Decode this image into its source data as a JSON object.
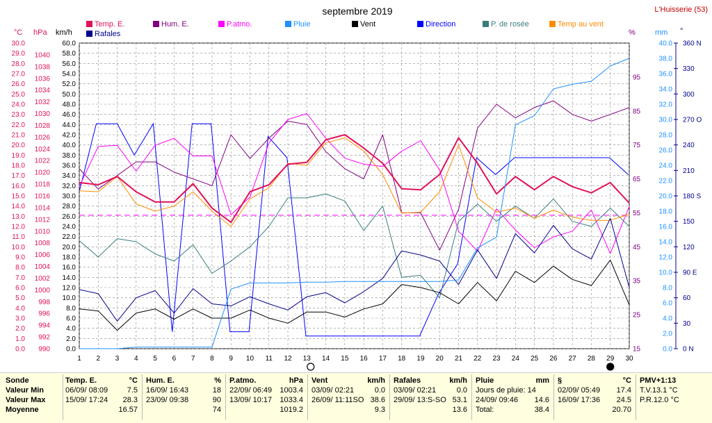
{
  "header": {
    "title": "septembre 2019",
    "station": "L'Huisserie (53)"
  },
  "legend": [
    {
      "name": "Temp. E.",
      "color": "#e0105a"
    },
    {
      "name": "Hum. E.",
      "color": "#800080"
    },
    {
      "name": "P.atmo.",
      "color": "#ff00ff"
    },
    {
      "name": "Pluie",
      "color": "#1e90ff"
    },
    {
      "name": "Vent",
      "color": "#000000"
    },
    {
      "name": "Direction",
      "color": "#0000ff"
    },
    {
      "name": "P. de rosée",
      "color": "#3a7c7c"
    },
    {
      "name": "Temp au vent",
      "color": "#ff8c00"
    },
    {
      "name": "Rafales",
      "color": "#00008b"
    }
  ],
  "axis_units": {
    "celsius": "°C",
    "hpa": "hPa",
    "kmh": "km/h",
    "percent": "%",
    "mm": "mm",
    "degree": "°"
  },
  "moon_symbols": [
    {
      "day": 13.2,
      "type": "full"
    },
    {
      "day": 29,
      "type": "new"
    }
  ],
  "chart_data": {
    "type": "line",
    "title": "septembre 2019",
    "x": [
      1,
      2,
      3,
      4,
      5,
      6,
      7,
      8,
      9,
      10,
      11,
      12,
      13,
      14,
      15,
      16,
      17,
      18,
      19,
      20,
      21,
      22,
      23,
      24,
      25,
      26,
      27,
      28,
      29,
      30
    ],
    "xlim": [
      1,
      30
    ],
    "grid": true,
    "axes": {
      "temp": {
        "label": "°C",
        "min": 0,
        "max": 30,
        "ticks": [
          0.0,
          1.0,
          2.0,
          3.0,
          4.0,
          5.0,
          6.0,
          7.0,
          8.0,
          9.0,
          10.0,
          11.0,
          12.0,
          13.0,
          14.0,
          15.0,
          16.0,
          17.0,
          18.0,
          19.0,
          20.0,
          21.0,
          22.0,
          23.0,
          24.0,
          25.0,
          26.0,
          27.0,
          28.0,
          29.0,
          30.0
        ]
      },
      "pressure": {
        "label": "hPa",
        "min": 990,
        "max": 1042,
        "ticks": [
          990,
          992,
          994,
          996,
          998,
          1000,
          1002,
          1004,
          1006,
          1008,
          1010,
          1012,
          1014,
          1016,
          1018,
          1020,
          1022,
          1024,
          1026,
          1028,
          1030,
          1032,
          1034,
          1036,
          1038,
          1040
        ]
      },
      "wind": {
        "label": "km/h",
        "min": 0,
        "max": 60,
        "ticks": [
          0.0,
          2.0,
          4.0,
          6.0,
          8.0,
          10.0,
          12.0,
          14.0,
          16.0,
          18.0,
          20.0,
          22.0,
          24.0,
          26.0,
          28.0,
          30.0,
          32.0,
          34.0,
          36.0,
          38.0,
          40.0,
          42.0,
          44.0,
          46.0,
          48.0,
          50.0,
          52.0,
          54.0,
          56.0,
          58.0,
          60.0
        ]
      },
      "humidity": {
        "label": "%",
        "min": 15,
        "max": 105,
        "ticks": [
          15,
          25,
          35,
          45,
          55,
          65,
          75,
          85,
          95
        ]
      },
      "rain": {
        "label": "mm",
        "min": 0,
        "max": 40,
        "ticks": [
          0.0,
          2.0,
          4.0,
          6.0,
          8.0,
          10.0,
          12.0,
          14.0,
          16.0,
          18.0,
          20.0,
          22.0,
          24.0,
          26.0,
          28.0,
          30.0,
          32.0,
          34.0,
          36.0,
          38.0,
          40.0
        ]
      },
      "direction": {
        "label": "°",
        "min": 0,
        "max": 360,
        "ticks": [
          {
            "v": 0,
            "l": "0 N"
          },
          {
            "v": 30,
            "l": "30"
          },
          {
            "v": 60,
            "l": "60"
          },
          {
            "v": 90,
            "l": "90 E"
          },
          {
            "v": 120,
            "l": "120"
          },
          {
            "v": 150,
            "l": "150"
          },
          {
            "v": 180,
            "l": "180 S"
          },
          {
            "v": 210,
            "l": "210"
          },
          {
            "v": 240,
            "l": "240"
          },
          {
            "v": 270,
            "l": "270 O"
          },
          {
            "v": 300,
            "l": "300"
          },
          {
            "v": 330,
            "l": "330"
          },
          {
            "v": 360,
            "l": "360 N"
          }
        ]
      }
    },
    "series": [
      {
        "name": "Hum. E.",
        "axis": "humidity",
        "color": "#800080",
        "width": 1,
        "values": [
          68,
          62,
          66,
          70,
          70,
          67,
          65,
          63,
          78,
          71,
          77,
          82,
          81,
          73,
          68,
          65,
          78,
          55,
          55,
          44,
          56,
          80,
          87,
          83,
          86,
          88,
          84,
          82,
          84,
          86
        ]
      },
      {
        "name": "P.atmo.",
        "axis": "pressure",
        "color": "#ff00ff",
        "width": 1,
        "values": [
          1017.6,
          1024.4,
          1024.6,
          1020.2,
          1024.6,
          1025.8,
          1022.8,
          1022.8,
          1012.8,
          1015.8,
          1025,
          1029,
          1030,
          1025.8,
          1022.4,
          1021.4,
          1021,
          1023.6,
          1025.4,
          1020.4,
          1010,
          1006.6,
          1013.8,
          1010.2,
          1007.2,
          1009,
          1010,
          1013.6,
          1006.2,
          1014.2
        ]
      },
      {
        "name": "P. de rosée",
        "axis": "temp",
        "color": "#3a7c7c",
        "width": 1,
        "values": [
          10.6,
          9,
          10.8,
          10.5,
          9.3,
          8.6,
          10.2,
          7.4,
          8.6,
          10,
          12,
          14.8,
          14.8,
          15.2,
          14.5,
          11.6,
          14,
          7,
          7.2,
          5,
          12.5,
          14.2,
          12.5,
          14,
          12.8,
          14.7,
          12.5,
          12,
          13.8,
          12
        ]
      },
      {
        "name": "Temp au vent",
        "axis": "temp",
        "color": "#ff8c00",
        "width": 1,
        "values": [
          15.5,
          15.4,
          16.9,
          14.2,
          13.5,
          14,
          15.4,
          13.5,
          12,
          14.7,
          15.8,
          18.2,
          18,
          20.2,
          20.7,
          19.4,
          17.1,
          13.3,
          13.4,
          15.4,
          20,
          14.8,
          13.4,
          13.8,
          12.8,
          13.6,
          12.9,
          12.6,
          12.6,
          13.2
        ]
      },
      {
        "name": "Temp. E.",
        "axis": "temp",
        "color": "#e0105a",
        "width": 2,
        "values": [
          16.3,
          16.1,
          16.9,
          15.4,
          14.4,
          14.4,
          16.2,
          13.8,
          12.4,
          15.4,
          16.1,
          18.1,
          18.3,
          20.5,
          21,
          19.7,
          18.2,
          15.7,
          15.6,
          17.1,
          20.7,
          18.2,
          15.2,
          16.9,
          15.6,
          16.9,
          15.9,
          15.3,
          16.3,
          14.3
        ]
      },
      {
        "name": "Rafales",
        "axis": "wind",
        "color": "#00008b",
        "width": 1,
        "values": [
          11.6,
          10.8,
          5.4,
          10,
          11.4,
          7,
          11.8,
          8.8,
          8.4,
          10.2,
          8.8,
          7.6,
          10.2,
          11,
          9,
          11.2,
          13.8,
          19.2,
          18.4,
          17.2,
          12.6,
          19.4,
          13.8,
          22.6,
          18.8,
          24.2,
          19.6,
          17.6,
          25.6,
          12
        ]
      },
      {
        "name": "Vent",
        "axis": "wind",
        "color": "#000000",
        "width": 1,
        "values": [
          7.8,
          7.4,
          3.6,
          7,
          7.8,
          5.8,
          7.8,
          6,
          6,
          7.6,
          6,
          5,
          7.2,
          7.2,
          6.2,
          7.8,
          8.8,
          12.6,
          12,
          11,
          8.8,
          13,
          9.4,
          15.2,
          13,
          16.2,
          13.6,
          12.4,
          17.4,
          8.6
        ]
      },
      {
        "name": "Pluie",
        "axis": "rain",
        "color": "#1e90ff",
        "width": 1,
        "values": [
          0,
          0,
          0,
          0.2,
          0.2,
          0.2,
          0.2,
          0.2,
          7.8,
          8.6,
          8.6,
          8.6,
          8.7,
          8.7,
          8.8,
          8.8,
          8.8,
          8.8,
          8.8,
          8.8,
          9,
          13.2,
          14.6,
          29.3,
          30.5,
          34,
          34.6,
          35,
          37,
          38
        ]
      }
    ],
    "direction_path": [
      [
        1,
        185
      ],
      [
        1.9,
        265
      ],
      [
        3,
        265
      ],
      [
        3.9,
        228
      ],
      [
        4.9,
        265
      ],
      [
        5.9,
        20
      ],
      [
        6.95,
        265
      ],
      [
        7.95,
        265
      ],
      [
        8.95,
        20
      ],
      [
        9.95,
        20
      ],
      [
        10.95,
        250
      ],
      [
        11.95,
        225
      ],
      [
        12.95,
        15
      ],
      [
        13.95,
        15
      ],
      [
        14.95,
        15
      ],
      [
        15.95,
        15
      ],
      [
        16.95,
        15
      ],
      [
        17.95,
        15
      ],
      [
        18.95,
        15
      ],
      [
        19.95,
        65
      ],
      [
        20.95,
        100
      ],
      [
        21.95,
        225
      ],
      [
        22.95,
        205
      ],
      [
        23.95,
        225
      ],
      [
        24.95,
        225
      ],
      [
        25.95,
        225
      ],
      [
        26.95,
        225
      ],
      [
        27.95,
        225
      ],
      [
        28.95,
        225
      ],
      [
        29.95,
        205
      ]
    ],
    "reference_line": {
      "axis": "temp",
      "value": 13.1,
      "color": "#ff00ff"
    }
  },
  "stats": {
    "sonde": {
      "title": "Sonde",
      "labels": [
        "Valeur Min",
        "Valeur Max",
        "Moyenne"
      ]
    },
    "temp": {
      "title": "Temp. E.",
      "unit": "°C",
      "min_date": "06/09/ 08:09",
      "min_val": "7.5",
      "max_date": "15/09/ 17:24",
      "max_val": "28.3",
      "avg": "16.57"
    },
    "hum": {
      "title": "Hum. E.",
      "unit": "%",
      "min_date": "16/09/ 16:43",
      "min_val": "18",
      "max_date": "23/09/ 09:38",
      "max_val": "90",
      "avg": "74"
    },
    "patmo": {
      "title": "P.atmo.",
      "unit": "hPa",
      "min_date": "22/09/ 06:49",
      "min_val": "1003.4",
      "max_date": "13/09/ 10:17",
      "max_val": "1033.4",
      "avg": "1019.2"
    },
    "vent": {
      "title": "Vent",
      "unit": "km/h",
      "min_date": "03/09/ 02:21",
      "min_val": "0.0",
      "max_date": "26/09/ 11:11SO",
      "max_val": "38.6",
      "avg": "9.3"
    },
    "rafales": {
      "title": "Rafales",
      "unit": "km/h",
      "min_date": "03/09/ 02:21",
      "min_val": "0.0",
      "max_date": "29/09/ 13:S-SO",
      "max_val": "53.1",
      "avg": "13.6"
    },
    "pluie": {
      "title": "Pluie",
      "unit": "mm",
      "r1_label": "Jours de pluie:",
      "r1_val": "14",
      "r2_label": "24/09/ 09:46",
      "r2_val": "14.6",
      "r3_label": "Total:",
      "r3_val": "38.4"
    },
    "rosee": {
      "title": "§",
      "unit": "°C",
      "min_date": "02/09/ 05:49",
      "min_val": "17.4",
      "max_date": "16/09/ 17:36",
      "max_val": "24.5",
      "avg": "20.70"
    },
    "pmv": {
      "title": "PMV+1:13",
      "l1": "T.V.13.1 °C",
      "l2": "P.R.12.0 °C"
    }
  }
}
